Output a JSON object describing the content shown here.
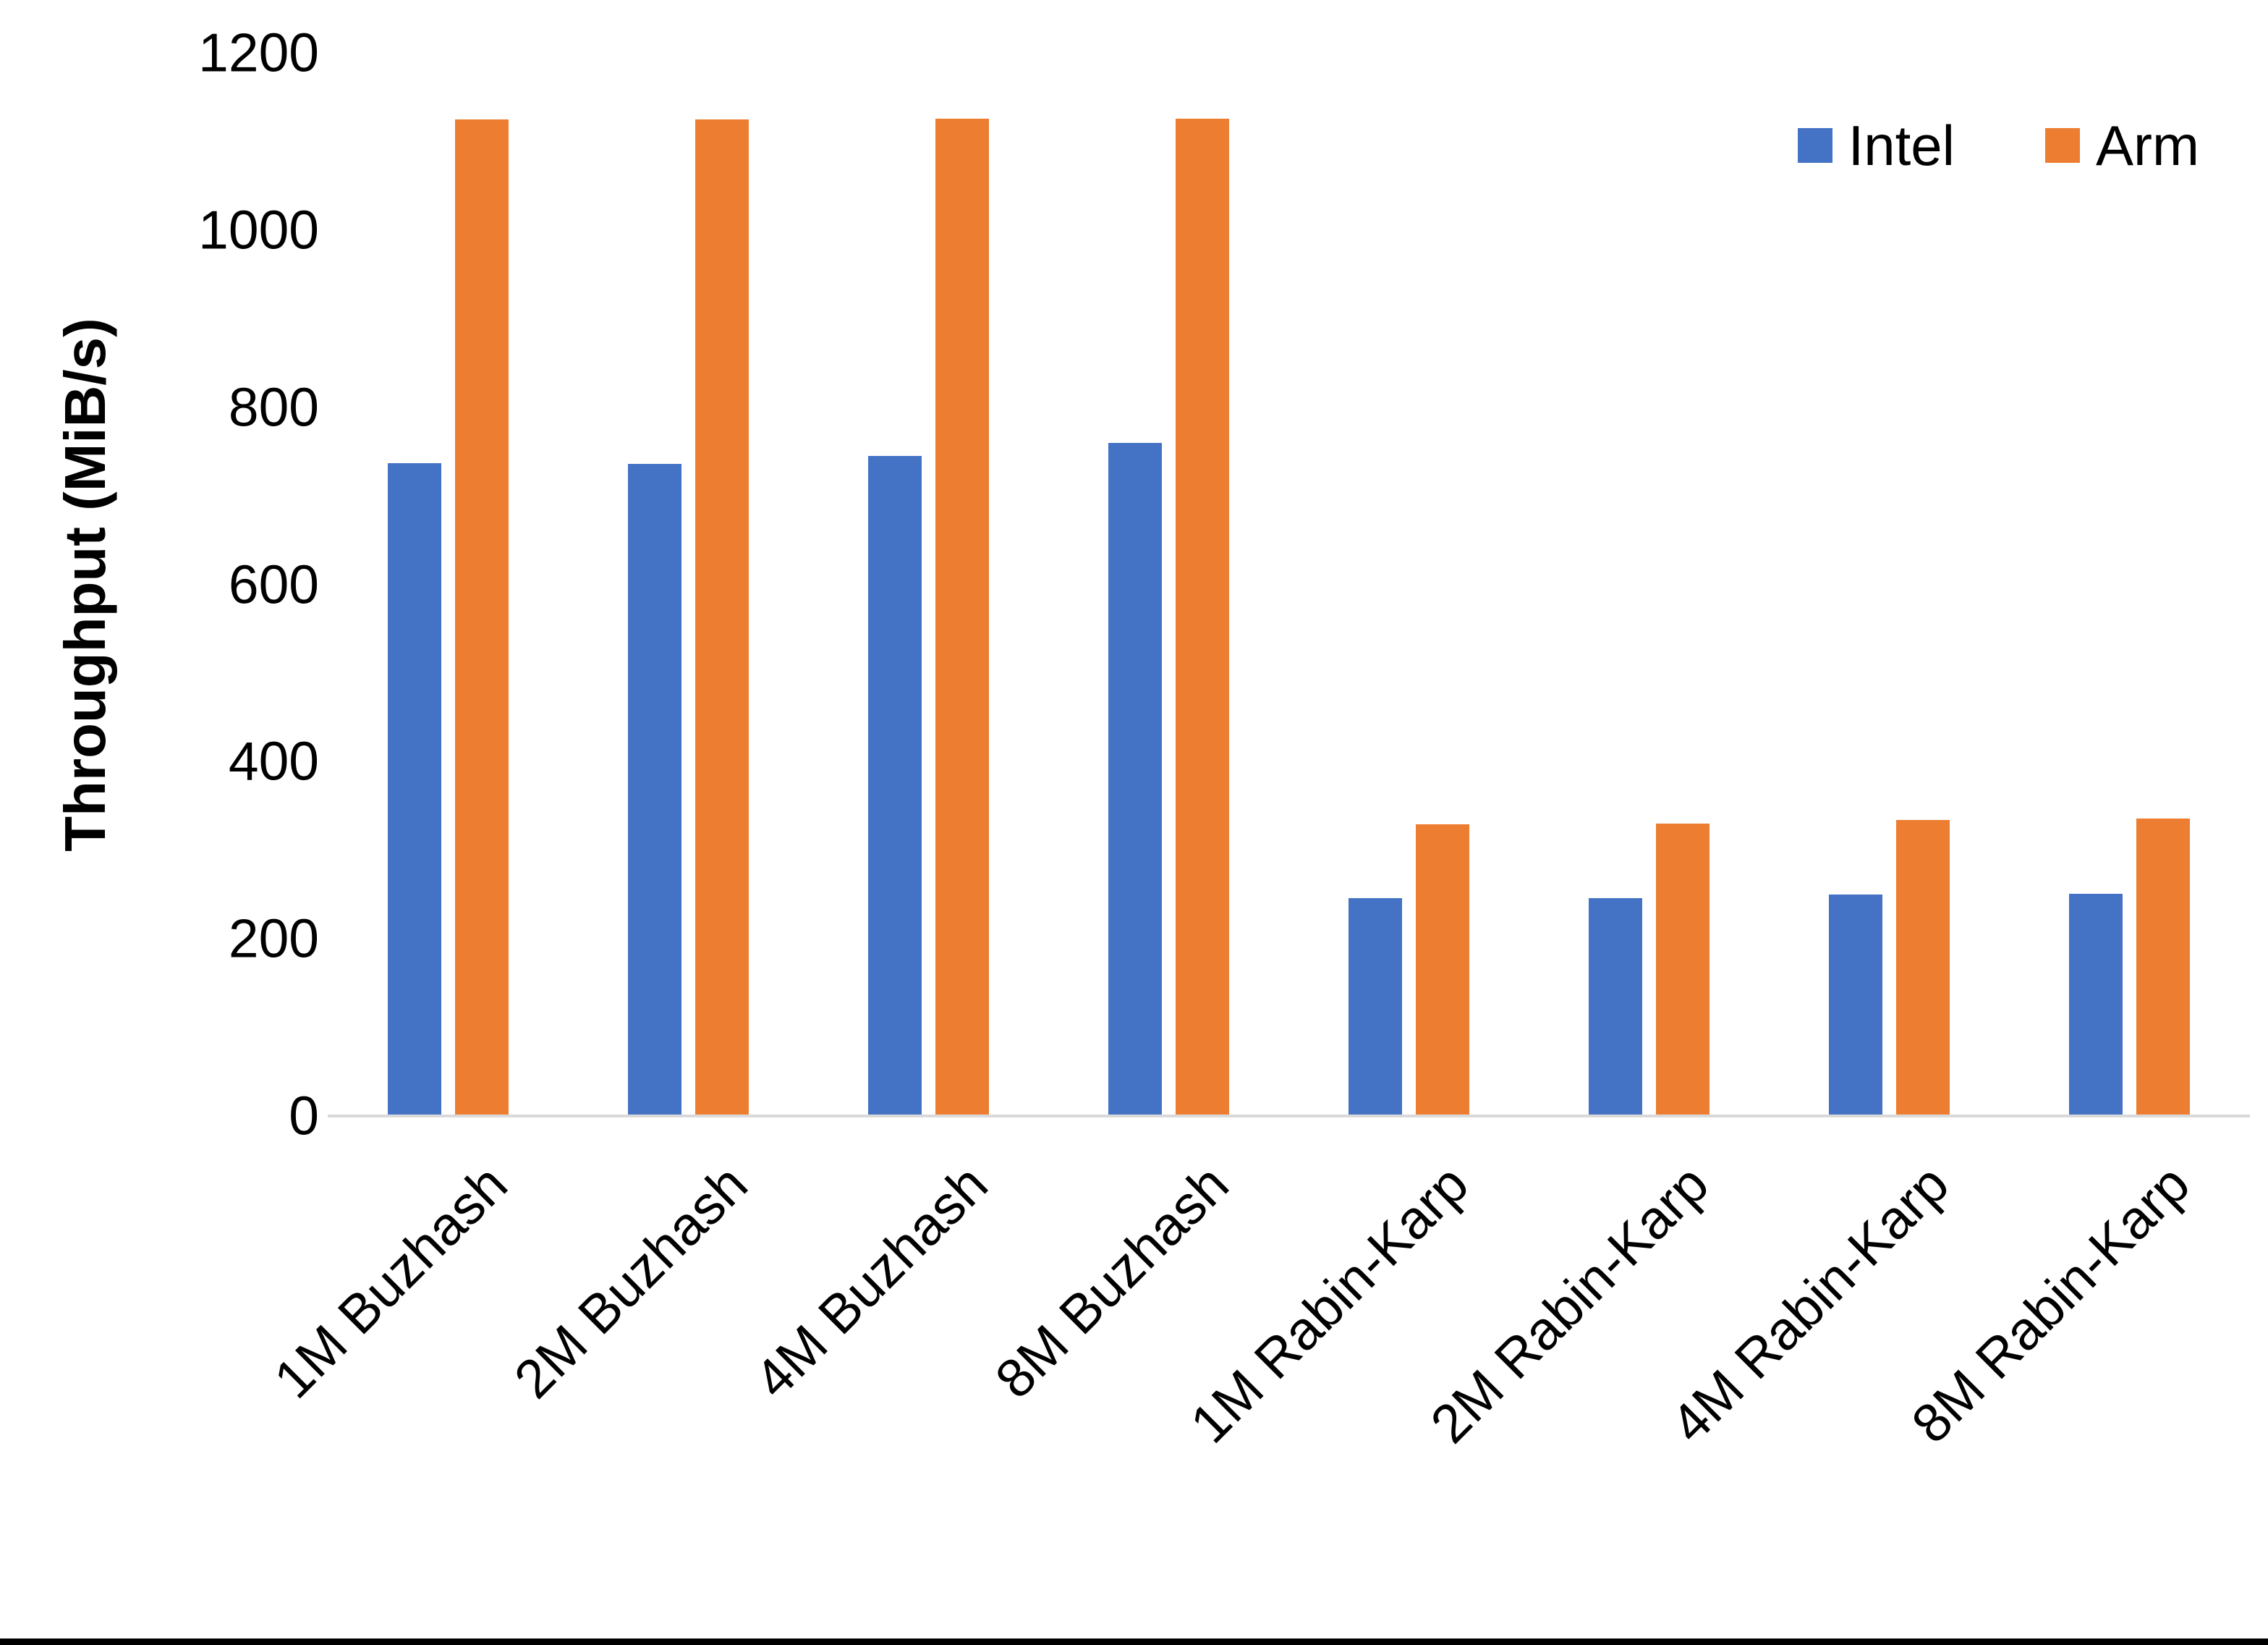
{
  "chart_data": {
    "type": "bar",
    "title": "",
    "xlabel": "",
    "ylabel": "Throughput (MiB/s)",
    "ylim": [
      0,
      1200
    ],
    "ytick_step": 200,
    "yticks": [
      "1200",
      "1000",
      "800",
      "600",
      "400",
      "200",
      "0"
    ],
    "grid": false,
    "legend_position": "top-right",
    "categories": [
      "1M Buzhash",
      "2M Buzhash",
      "4M Buzhash",
      "8M Buzhash",
      "1M Rabin-Karp",
      "2M Rabin-Karp",
      "4M Rabin-Karp",
      "8M Rabin-Karp"
    ],
    "series": [
      {
        "name": "Intel",
        "color": "#4472C4",
        "values": [
          737,
          736,
          745,
          760,
          246,
          246,
          250,
          251
        ]
      },
      {
        "name": "Arm",
        "color": "#ED7D31",
        "values": [
          1125,
          1125,
          1126,
          1126,
          329,
          330,
          334,
          336
        ]
      }
    ],
    "axis_line_color": "#D9D9D9",
    "text_color": "#000000",
    "bottom_bar_color": "#000000"
  }
}
